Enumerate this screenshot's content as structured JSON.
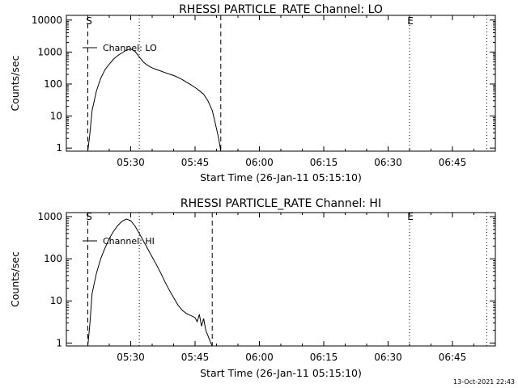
{
  "footer_timestamp": "13-Oct-2021 22:43",
  "chart_data": [
    {
      "type": "line",
      "title": "RHESSI PARTICLE_RATE Channel: LO",
      "xlabel": "Start Time (26-Jan-11 05:15:10)",
      "ylabel": "Counts/sec",
      "yscale": "log",
      "ylim": [
        0.8,
        14000
      ],
      "y_ticks": [
        1,
        10,
        100,
        1000,
        10000
      ],
      "y_tick_labels": [
        "1",
        "10",
        "100",
        "1000",
        "10000"
      ],
      "x_range": [
        "05:15",
        "06:55"
      ],
      "x_ticks": [
        "05:30",
        "05:45",
        "06:00",
        "06:15",
        "06:30",
        "06:45"
      ],
      "markers": [
        {
          "label": "S",
          "time": "05:20",
          "style": "dashed"
        },
        {
          "label": "E",
          "time": "06:35",
          "style": "dotted"
        }
      ],
      "vlines": [
        {
          "time": "05:20",
          "style": "dashed"
        },
        {
          "time": "05:51",
          "style": "dashed"
        },
        {
          "time": "05:32",
          "style": "dotted"
        },
        {
          "time": "06:35",
          "style": "dotted"
        },
        {
          "time": "06:53",
          "style": "dotted"
        }
      ],
      "series": [
        {
          "name": "Channel: LO",
          "points": [
            [
              "05:20",
              0.8
            ],
            [
              "05:20.5",
              3
            ],
            [
              "05:21",
              15
            ],
            [
              "05:22",
              60
            ],
            [
              "05:23",
              150
            ],
            [
              "05:24",
              280
            ],
            [
              "05:25",
              420
            ],
            [
              "05:26",
              600
            ],
            [
              "05:27",
              780
            ],
            [
              "05:28",
              950
            ],
            [
              "05:29",
              1150
            ],
            [
              "05:30",
              1250
            ],
            [
              "05:31",
              1050
            ],
            [
              "05:32",
              700
            ],
            [
              "05:33",
              480
            ],
            [
              "05:34",
              380
            ],
            [
              "05:35",
              320
            ],
            [
              "05:36",
              285
            ],
            [
              "05:37",
              255
            ],
            [
              "05:38",
              228
            ],
            [
              "05:39",
              205
            ],
            [
              "05:40",
              185
            ],
            [
              "05:41",
              162
            ],
            [
              "05:42",
              138
            ],
            [
              "05:43",
              115
            ],
            [
              "05:44",
              95
            ],
            [
              "05:45",
              78
            ],
            [
              "05:46",
              62
            ],
            [
              "05:47",
              48
            ],
            [
              "05:48",
              30
            ],
            [
              "05:49",
              15
            ],
            [
              "05:49.5",
              8
            ],
            [
              "05:50",
              4
            ],
            [
              "05:50.5",
              2
            ],
            [
              "05:51",
              0.8
            ]
          ]
        }
      ]
    },
    {
      "type": "line",
      "title": "RHESSI PARTICLE_RATE Channel: HI",
      "xlabel": "Start Time (26-Jan-11 05:15:10)",
      "ylabel": "Counts/sec",
      "yscale": "log",
      "ylim": [
        0.85,
        1250
      ],
      "y_ticks": [
        1,
        10,
        100,
        1000
      ],
      "y_tick_labels": [
        "1",
        "10",
        "100",
        "1000"
      ],
      "x_range": [
        "05:15",
        "06:55"
      ],
      "x_ticks": [
        "05:30",
        "05:45",
        "06:00",
        "06:15",
        "06:30",
        "06:45"
      ],
      "markers": [
        {
          "label": "S",
          "time": "05:20",
          "style": "dashed"
        },
        {
          "label": "E",
          "time": "06:35",
          "style": "dotted"
        }
      ],
      "vlines": [
        {
          "time": "05:20",
          "style": "dashed"
        },
        {
          "time": "05:49",
          "style": "dashed"
        },
        {
          "time": "05:32",
          "style": "dotted"
        },
        {
          "time": "06:35",
          "style": "dotted"
        },
        {
          "time": "06:53",
          "style": "dotted"
        }
      ],
      "series": [
        {
          "name": "Channel: HI",
          "points": [
            [
              "05:20",
              0.85
            ],
            [
              "05:20.5",
              3
            ],
            [
              "05:21",
              15
            ],
            [
              "05:22",
              45
            ],
            [
              "05:23",
              100
            ],
            [
              "05:24",
              180
            ],
            [
              "05:25",
              300
            ],
            [
              "05:26",
              450
            ],
            [
              "05:27",
              620
            ],
            [
              "05:28",
              780
            ],
            [
              "05:29",
              880
            ],
            [
              "05:30",
              800
            ],
            [
              "05:31",
              600
            ],
            [
              "05:32",
              400
            ],
            [
              "05:33",
              260
            ],
            [
              "05:34",
              170
            ],
            [
              "05:35",
              110
            ],
            [
              "05:36",
              72
            ],
            [
              "05:37",
              46
            ],
            [
              "05:38",
              28
            ],
            [
              "05:39",
              18
            ],
            [
              "05:40",
              12
            ],
            [
              "05:41",
              8
            ],
            [
              "05:42",
              6
            ],
            [
              "05:43",
              5
            ],
            [
              "05:44",
              4.5
            ],
            [
              "05:45",
              4
            ],
            [
              "05:45.5",
              3.2
            ],
            [
              "05:46",
              4.8
            ],
            [
              "05:46.5",
              2.5
            ],
            [
              "05:47",
              3.8
            ],
            [
              "05:47.5",
              2
            ],
            [
              "05:48",
              1.5
            ],
            [
              "05:48.5",
              1.1
            ],
            [
              "05:49",
              0.85
            ]
          ]
        }
      ]
    }
  ]
}
